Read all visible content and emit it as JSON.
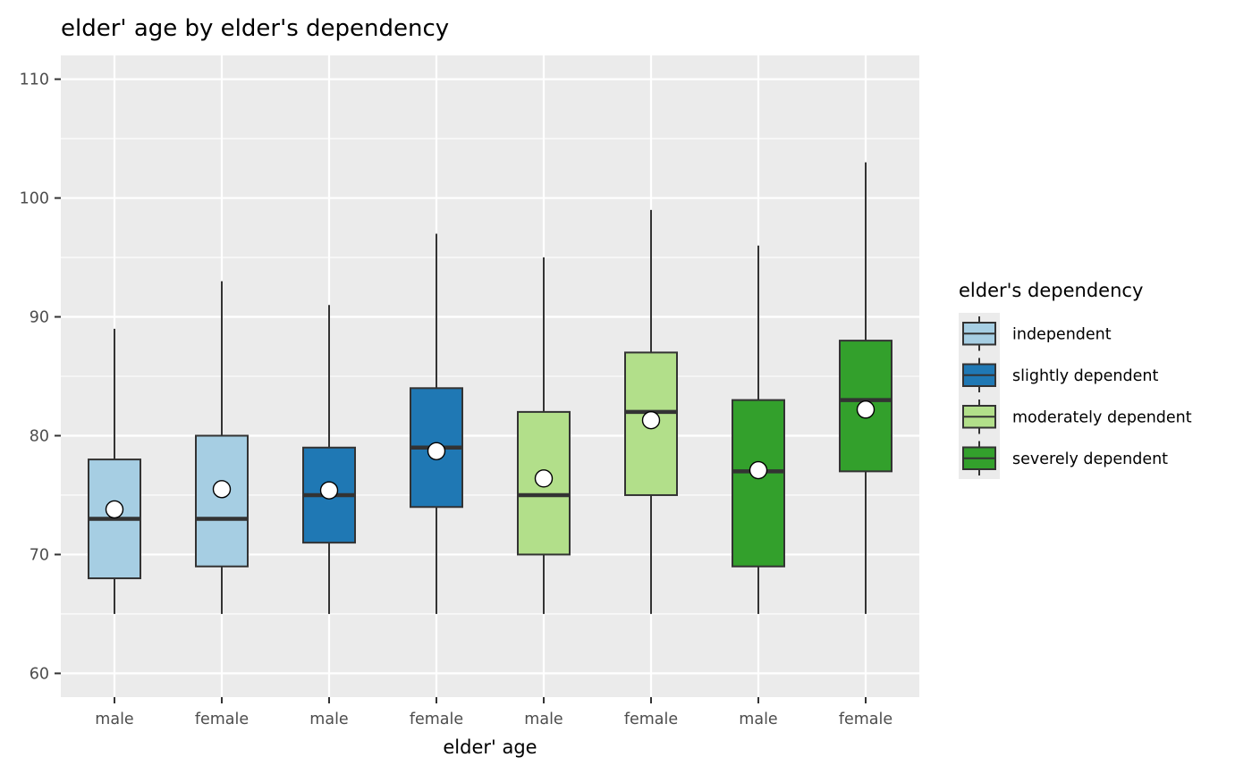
{
  "chart_data": {
    "type": "box",
    "title": "elder' age by elder's dependency",
    "xlabel": "elder' age",
    "ylabel": "",
    "ylim": [
      58,
      112
    ],
    "yticks": [
      60,
      70,
      80,
      90,
      100,
      110
    ],
    "grid": true,
    "legend": {
      "title": "elder's dependency",
      "position": "right",
      "entries": [
        {
          "label": "independent",
          "color": "#A6CEE3"
        },
        {
          "label": "slightly dependent",
          "color": "#1F78B4"
        },
        {
          "label": "moderately dependent",
          "color": "#B2DF8A"
        },
        {
          "label": "severely dependent",
          "color": "#33A02C"
        }
      ]
    },
    "categories": [
      "male",
      "female",
      "male",
      "female",
      "male",
      "female",
      "male",
      "female"
    ],
    "boxes": [
      {
        "category": "male",
        "group": "independent",
        "min": 65,
        "q1": 68,
        "median": 73,
        "q3": 78,
        "max": 89,
        "mean": 73.8
      },
      {
        "category": "female",
        "group": "independent",
        "min": 65,
        "q1": 69,
        "median": 73,
        "q3": 80,
        "max": 93,
        "mean": 75.5
      },
      {
        "category": "male",
        "group": "slightly dependent",
        "min": 65,
        "q1": 71,
        "median": 75,
        "q3": 79,
        "max": 91,
        "mean": 75.4
      },
      {
        "category": "female",
        "group": "slightly dependent",
        "min": 65,
        "q1": 74,
        "median": 79,
        "q3": 84,
        "max": 97,
        "mean": 78.7
      },
      {
        "category": "male",
        "group": "moderately dependent",
        "min": 65,
        "q1": 70,
        "median": 75,
        "q3": 82,
        "max": 95,
        "mean": 76.4
      },
      {
        "category": "female",
        "group": "moderately dependent",
        "min": 65,
        "q1": 75,
        "median": 82,
        "q3": 87,
        "max": 99,
        "mean": 81.3
      },
      {
        "category": "male",
        "group": "severely dependent",
        "min": 65,
        "q1": 69,
        "median": 77,
        "q3": 83,
        "max": 96,
        "mean": 77.1
      },
      {
        "category": "female",
        "group": "severely dependent",
        "min": 65,
        "q1": 77,
        "median": 83,
        "q3": 88,
        "max": 103,
        "mean": 82.2
      }
    ]
  }
}
